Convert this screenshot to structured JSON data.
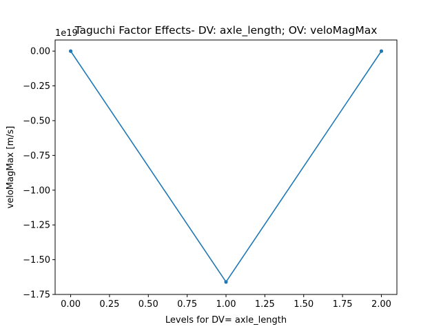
{
  "chart_data": {
    "type": "line",
    "title": "Taguchi Factor Effects- DV: axle_length; OV: veloMagMax",
    "xlabel": "Levels for DV= axle_length",
    "ylabel": "veloMagMax [m/s]",
    "y_offset_label": "1e19",
    "xlim": [
      -0.1,
      2.1
    ],
    "ylim": [
      -1.75,
      0.08
    ],
    "x_ticks": [
      0.0,
      0.25,
      0.5,
      0.75,
      1.0,
      1.25,
      1.5,
      1.75,
      2.0
    ],
    "x_tick_labels": [
      "0.00",
      "0.25",
      "0.50",
      "0.75",
      "1.00",
      "1.25",
      "1.50",
      "1.75",
      "2.00"
    ],
    "y_ticks": [
      0.0,
      -0.25,
      -0.5,
      -0.75,
      -1.0,
      -1.25,
      -1.5,
      -1.75
    ],
    "y_tick_labels": [
      "0.00",
      "−0.25",
      "−0.50",
      "−0.75",
      "−1.00",
      "−1.25",
      "−1.50",
      "−1.75"
    ],
    "grid": false,
    "series": [
      {
        "color": "#1f77b4",
        "marker": "point",
        "x": [
          0,
          1,
          2
        ],
        "y": [
          0.0,
          -1.66,
          0.0
        ]
      }
    ]
  }
}
